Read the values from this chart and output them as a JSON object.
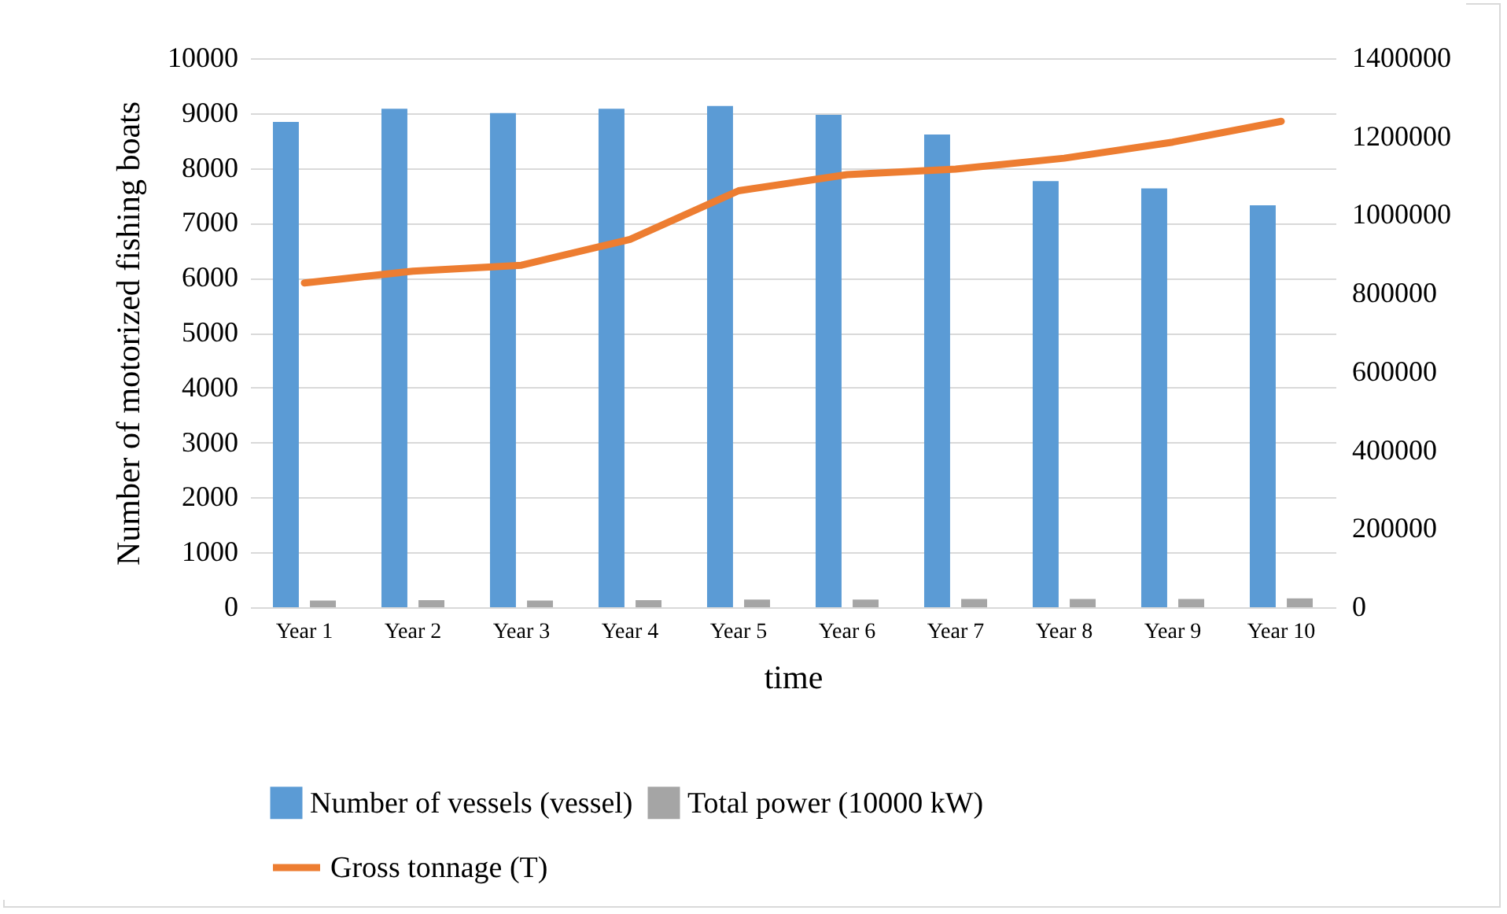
{
  "chart_data": {
    "type": "bar",
    "xlabel": "time",
    "ylabel": "Number of motorized fishing boats",
    "categories": [
      "Year 1",
      "Year 2",
      "Year 3",
      "Year 4",
      "Year 5",
      "Year 6",
      "Year 7",
      "Year 8",
      "Year 9",
      "Year 10"
    ],
    "series": [
      {
        "name": "Number of vessels (vessel)",
        "color": "#5b9bd5",
        "values": [
          8840,
          9080,
          9000,
          9080,
          9130,
          8970,
          8610,
          7760,
          7630,
          7320
        ]
      },
      {
        "name": "Total power (10000 kW)",
        "color": "#a5a5a5",
        "values": [
          120,
          130,
          120,
          130,
          140,
          140,
          150,
          150,
          150,
          160
        ]
      },
      {
        "name": "Gross tonnage (T)",
        "type": "line",
        "axis": "y2",
        "color": "#ed7d31",
        "values": [
          827000,
          857000,
          872000,
          938000,
          1062000,
          1103000,
          1117000,
          1145000,
          1186000,
          1239000
        ]
      }
    ],
    "ylim": [
      0,
      10000
    ],
    "yticks": [
      0,
      1000,
      2000,
      3000,
      4000,
      5000,
      6000,
      7000,
      8000,
      9000,
      10000
    ],
    "y2lim": [
      0,
      1400000
    ],
    "y2ticks": [
      0,
      200000,
      400000,
      600000,
      800000,
      1000000,
      1200000,
      1400000
    ],
    "grid": "y",
    "legend": "bottom",
    "line_style": "solid"
  }
}
